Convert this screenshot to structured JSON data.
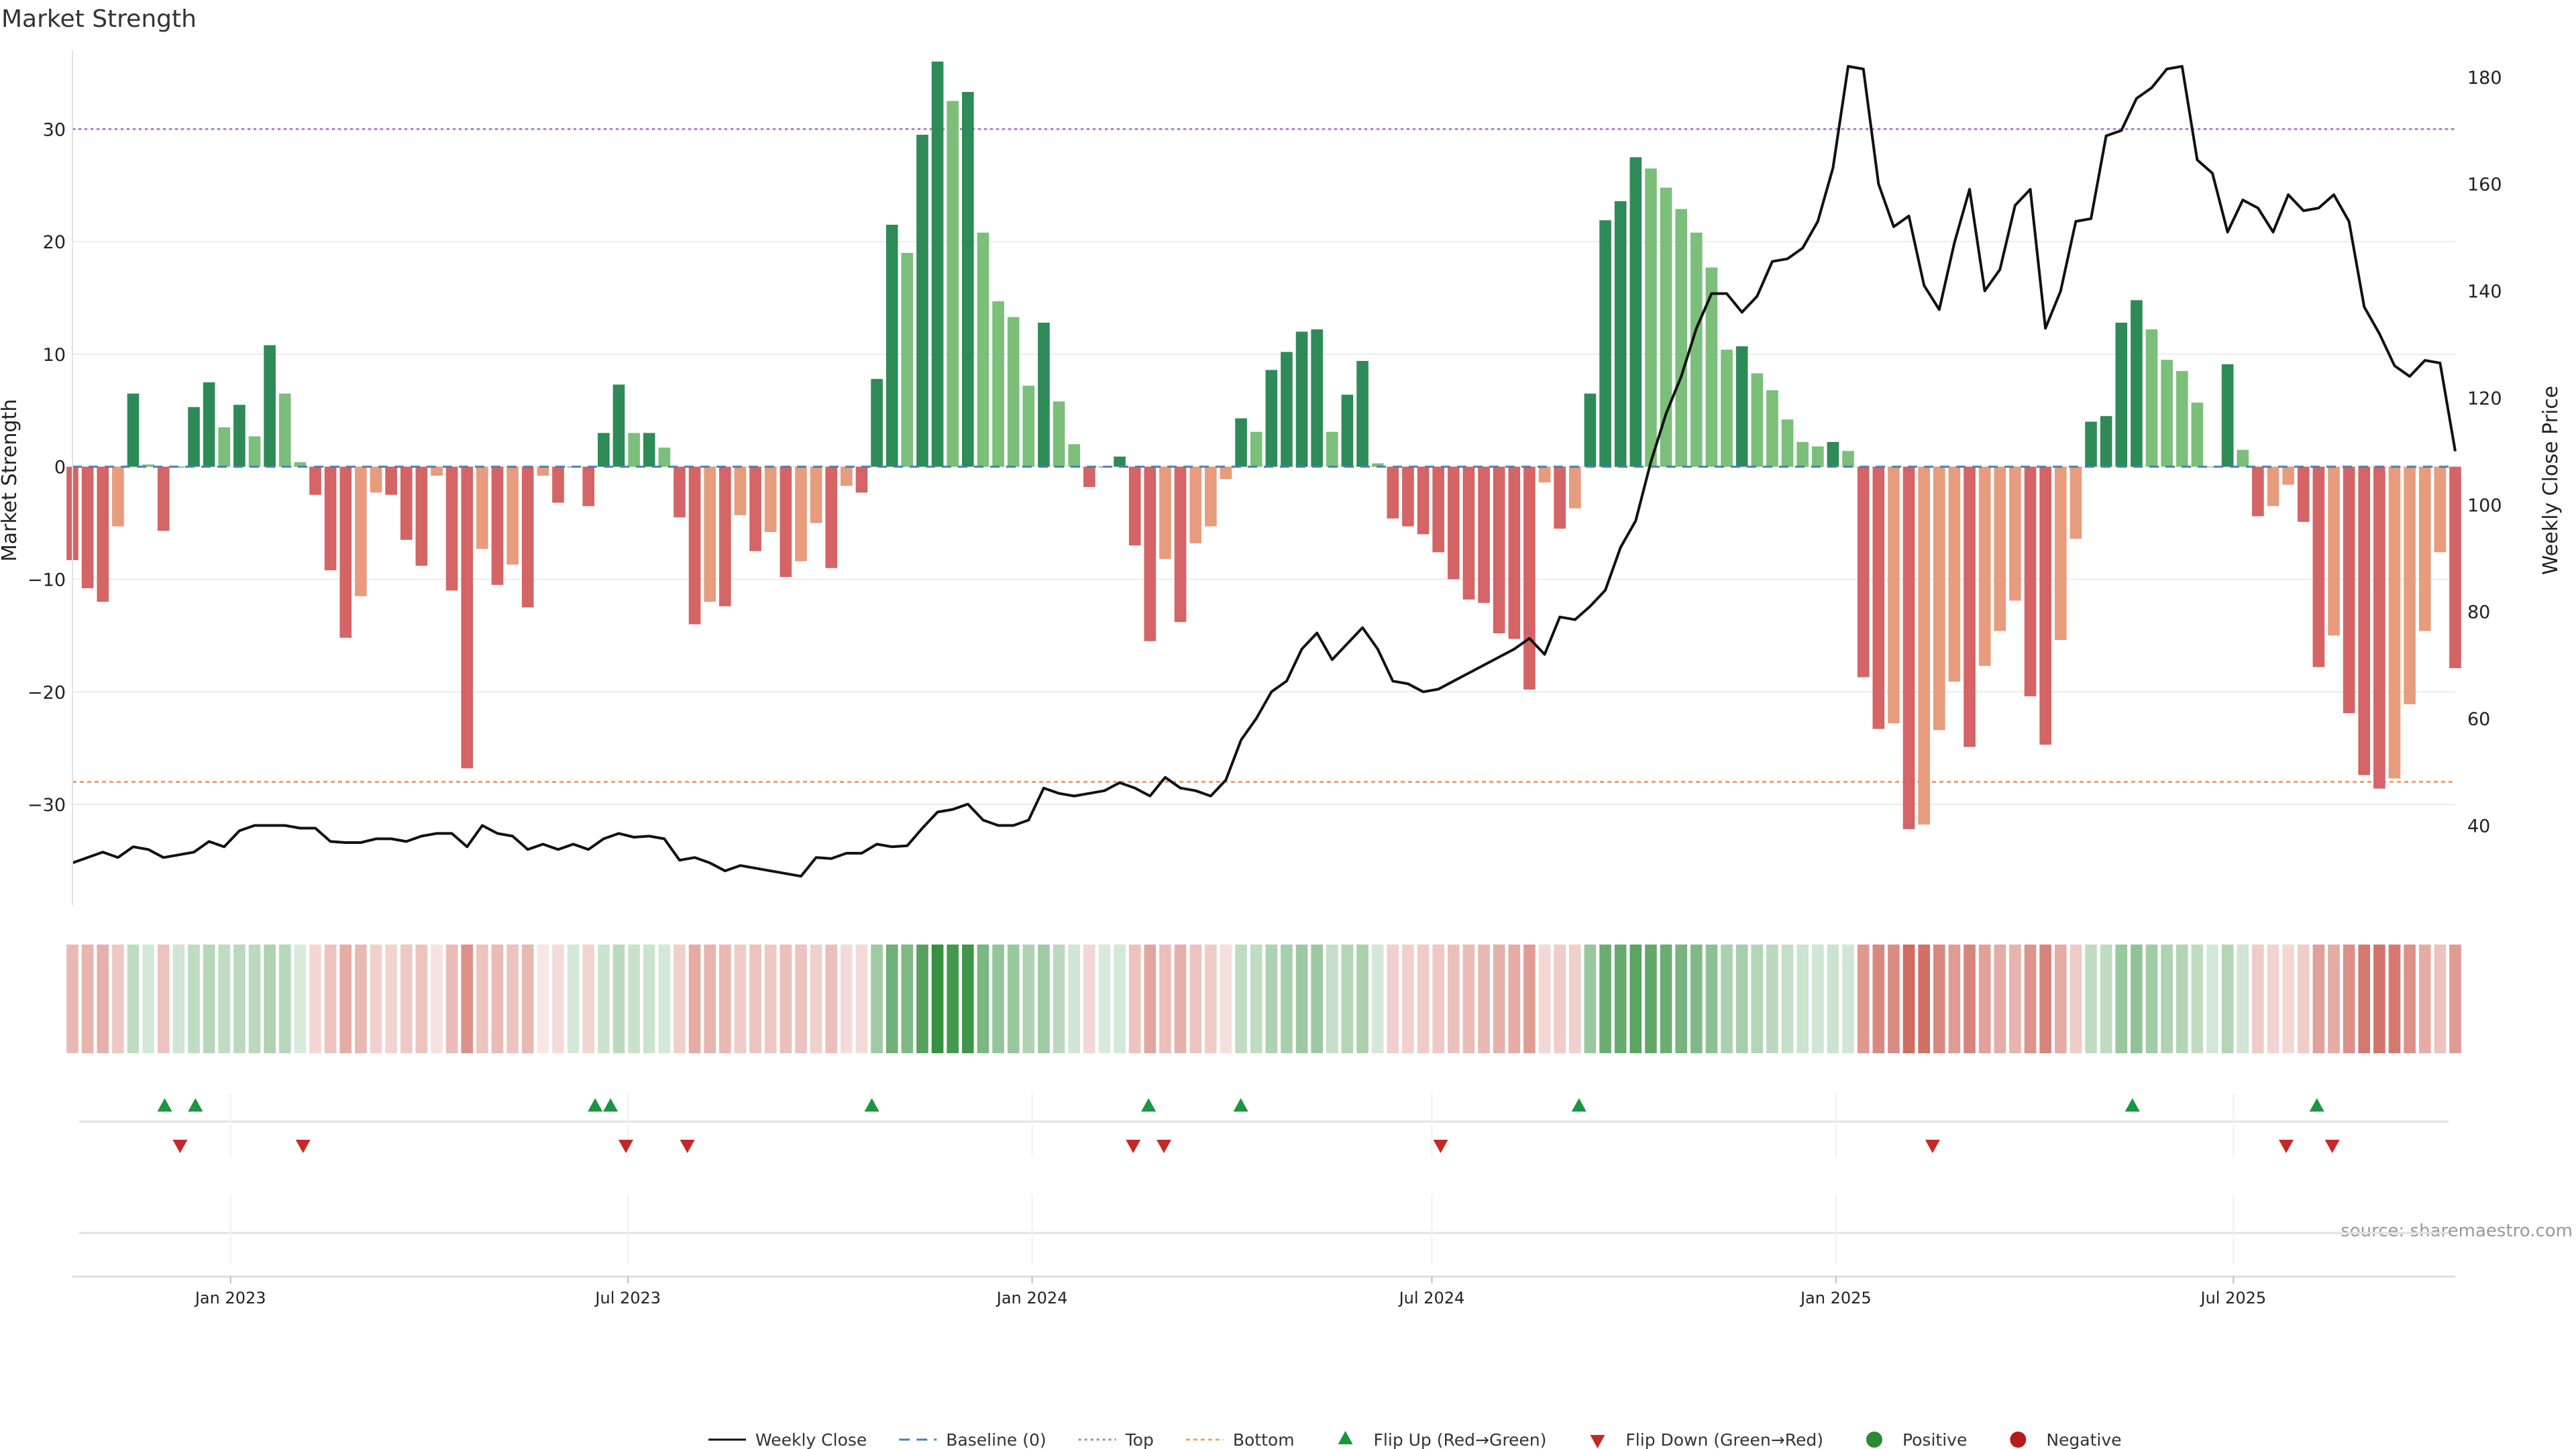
{
  "chart_data": {
    "type": "bar",
    "title": "Market Strength",
    "ylabel_left": "Market Strength",
    "ylabel_right": "Weekly Close Price",
    "source": "source: sharemaestro.com",
    "ylim_left": [
      -39,
      37
    ],
    "ylim_right": [
      25,
      185
    ],
    "yticks_left": [
      -30,
      -20,
      -10,
      0,
      10,
      20,
      30
    ],
    "yticks_right": [
      40,
      60,
      80,
      100,
      120,
      140,
      160,
      180
    ],
    "x_start": "2022-10-21",
    "x_end": "2025-10-10",
    "x_ticks": [
      {
        "date": "2023-01-01",
        "label": "Jan 2023"
      },
      {
        "date": "2023-07-01",
        "label": "Jul 2023"
      },
      {
        "date": "2024-01-01",
        "label": "Jan 2024"
      },
      {
        "date": "2024-07-01",
        "label": "Jul 2024"
      },
      {
        "date": "2025-01-01",
        "label": "Jan 2025"
      },
      {
        "date": "2025-07-01",
        "label": "Jul 2025"
      }
    ],
    "top_line": 30,
    "bottom_line": -28,
    "baseline": 0,
    "strength": [
      -8.3,
      -10.8,
      -12,
      -5.3,
      6.5,
      0.2,
      -5.7,
      0,
      5.3,
      7.5,
      3.5,
      5.5,
      2.7,
      10.8,
      6.5,
      0.4,
      -2.5,
      -9.2,
      -15.2,
      -11.5,
      -2.3,
      -2.5,
      -6.5,
      -8.8,
      -0.8,
      -11,
      -26.8,
      -7.3,
      -10.5,
      -8.7,
      -12.5,
      -0.8,
      -3.2,
      0,
      -3.5,
      3,
      7.3,
      3,
      3,
      1.7,
      -4.5,
      -14,
      -12,
      -12.4,
      -4.3,
      -7.5,
      -5.8,
      -9.8,
      -8.4,
      -5,
      -9,
      -1.7,
      -2.3,
      7.8,
      21.5,
      19,
      29.5,
      36,
      32.5,
      33.3,
      20.8,
      14.7,
      13.3,
      7.2,
      12.8,
      5.8,
      2,
      -1.8,
      0,
      0.9,
      -7,
      -15.5,
      -8.2,
      -13.8,
      -6.8,
      -5.3,
      -1.1,
      4.3,
      3.1,
      8.6,
      10.2,
      12,
      12.2,
      3.1,
      6.4,
      9.4,
      0.3,
      -4.6,
      -5.3,
      -6,
      -7.6,
      -10,
      -11.8,
      -12.1,
      -14.8,
      -15.3,
      -19.8,
      -1.4,
      -5.5,
      -3.7,
      6.5,
      21.9,
      23.6,
      27.5,
      26.5,
      24.8,
      22.9,
      20.8,
      17.7,
      10.4,
      10.7,
      8.3,
      6.8,
      4.2,
      2.2,
      1.8,
      2.2,
      1.4,
      -18.7,
      -23.3,
      -22.8,
      -32.2,
      -31.8,
      -23.4,
      -19.1,
      -24.9,
      -17.7,
      -14.6,
      -11.9,
      -20.4,
      -24.7,
      -15.4,
      -6.4,
      4,
      4.5,
      12.8,
      14.8,
      12.2,
      9.5,
      8.5,
      5.7,
      0,
      9.1,
      1.5,
      -4.4,
      -3.5,
      -1.6,
      -4.9,
      -17.8,
      -15,
      -21.9,
      -27.4,
      -28.6,
      -27.7,
      -21.1,
      -14.6,
      -7.6,
      -17.9
    ],
    "weekly_close": [
      33,
      34,
      35,
      34,
      36,
      35.5,
      34,
      34.5,
      35,
      37,
      36,
      39,
      40,
      40,
      40,
      39.5,
      39.5,
      37,
      36.8,
      36.8,
      37.5,
      37.5,
      37,
      38,
      38.5,
      38.5,
      36,
      40,
      38.5,
      38,
      35.5,
      36.5,
      35.5,
      36.5,
      35.5,
      37.5,
      38.5,
      37.8,
      38,
      37.5,
      33.5,
      34,
      33,
      31.5,
      32.5,
      32,
      31.5,
      31,
      30.5,
      34,
      33.8,
      34.8,
      34.8,
      36.5,
      36,
      36.2,
      39.5,
      42.5,
      43,
      44,
      41,
      40,
      40,
      41,
      47,
      46,
      45.5,
      46,
      46.5,
      48,
      47,
      45.5,
      49,
      47,
      46.5,
      45.5,
      48.5,
      56,
      60,
      65,
      67,
      73,
      76,
      71,
      74,
      77,
      73,
      67,
      66.5,
      65,
      65.5,
      67,
      68.5,
      70,
      71.5,
      73,
      75,
      72,
      79,
      78.5,
      81,
      84,
      92,
      97,
      108,
      117,
      124,
      133,
      139.5,
      139.5,
      136,
      139,
      145.5,
      146,
      148,
      153,
      163,
      182,
      181.5,
      160,
      152,
      154,
      141,
      136.5,
      149,
      159,
      140,
      144,
      156,
      159,
      133,
      140,
      153,
      153.5,
      169,
      170,
      176,
      178,
      181.5,
      182,
      164.5,
      162,
      151,
      157,
      155.5,
      151,
      158,
      155,
      155.5,
      158,
      153,
      137,
      132,
      126,
      124,
      127,
      126.5,
      110
    ],
    "heat_cells": [
      0.35,
      0.38,
      0.4,
      0.28,
      0.3,
      0.2,
      0.3,
      0.22,
      0.3,
      0.34,
      0.3,
      0.32,
      0.32,
      0.38,
      0.34,
      0.18,
      0.2,
      0.3,
      0.42,
      0.36,
      0.24,
      0.22,
      0.28,
      0.3,
      0.14,
      0.34,
      0.55,
      0.3,
      0.34,
      0.3,
      0.36,
      0.12,
      0.18,
      0.2,
      0.22,
      0.24,
      0.32,
      0.26,
      0.24,
      0.2,
      0.24,
      0.42,
      0.38,
      0.36,
      0.26,
      0.3,
      0.28,
      0.32,
      0.3,
      0.24,
      0.32,
      0.18,
      0.18,
      0.45,
      0.68,
      0.6,
      0.8,
      0.95,
      0.88,
      0.9,
      0.62,
      0.5,
      0.48,
      0.38,
      0.45,
      0.32,
      0.22,
      0.2,
      0.18,
      0.2,
      0.3,
      0.45,
      0.32,
      0.4,
      0.3,
      0.26,
      0.16,
      0.3,
      0.3,
      0.38,
      0.42,
      0.46,
      0.46,
      0.28,
      0.36,
      0.4,
      0.2,
      0.24,
      0.24,
      0.26,
      0.28,
      0.32,
      0.34,
      0.36,
      0.4,
      0.42,
      0.5,
      0.2,
      0.26,
      0.24,
      0.48,
      0.7,
      0.72,
      0.78,
      0.74,
      0.7,
      0.64,
      0.6,
      0.54,
      0.4,
      0.42,
      0.36,
      0.32,
      0.28,
      0.24,
      0.22,
      0.24,
      0.22,
      0.52,
      0.6,
      0.58,
      0.75,
      0.72,
      0.6,
      0.5,
      0.62,
      0.48,
      0.42,
      0.38,
      0.54,
      0.62,
      0.42,
      0.26,
      0.3,
      0.3,
      0.48,
      0.52,
      0.44,
      0.38,
      0.36,
      0.3,
      0.2,
      0.36,
      0.22,
      0.26,
      0.22,
      0.2,
      0.26,
      0.48,
      0.42,
      0.56,
      0.68,
      0.7,
      0.68,
      0.56,
      0.42,
      0.3,
      0.5
    ],
    "flip_up_dates": [
      "2022-12-02",
      "2022-12-16",
      "2023-06-16",
      "2023-06-23",
      "2023-10-20",
      "2024-02-23",
      "2024-04-05",
      "2024-09-06",
      "2025-05-16",
      "2025-08-08"
    ],
    "flip_down_dates": [
      "2022-12-09",
      "2023-02-03",
      "2023-06-30",
      "2023-07-28",
      "2024-02-16",
      "2024-03-01",
      "2024-07-05",
      "2025-02-14",
      "2025-07-25",
      "2025-08-15"
    ],
    "colors": {
      "pos_strong": "#2e8b57",
      "pos_weak": "#7bbf7a",
      "neg_strong": "#d46465",
      "neg_weak": "#e69c7d",
      "price_line": "#111111",
      "top_line": "#b17ad1",
      "bottom_line": "#f0a26a",
      "baseline": "#4a7fb5",
      "flip_up": "#1a9641",
      "flip_down": "#c62828",
      "positive": "#2a8a35",
      "negative": "#b71c1c"
    },
    "legend": [
      {
        "label": "Weekly Close",
        "kind": "line"
      },
      {
        "label": "Baseline (0)",
        "kind": "dash-blue"
      },
      {
        "label": "Top",
        "kind": "dot-purple"
      },
      {
        "label": "Bottom",
        "kind": "dot-orange"
      },
      {
        "label": "Flip Up (Red→Green)",
        "kind": "tri-up"
      },
      {
        "label": "Flip Down (Green→Red)",
        "kind": "tri-down"
      },
      {
        "label": "Positive",
        "kind": "dot-green"
      },
      {
        "label": "Negative",
        "kind": "dot-red"
      }
    ]
  }
}
